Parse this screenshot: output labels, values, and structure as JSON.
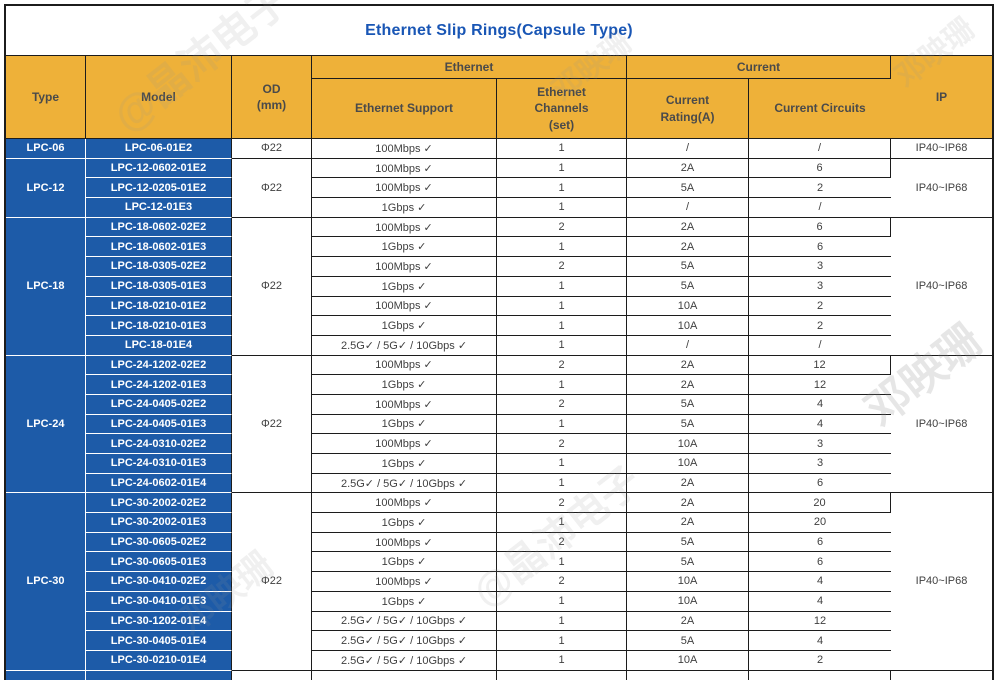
{
  "title": "Ethernet Slip Rings(Capsule Type)",
  "colors": {
    "header_bg": "#EEB139",
    "group_cell_bg": "#1D5BA8",
    "title_color": "#1956B5",
    "border_color": "#1C1C1C",
    "header_text": "#4A4A4A",
    "body_text": "#3F3F3F"
  },
  "header": {
    "type": "Type",
    "model": "Model",
    "od": "OD\n(mm)",
    "ethernet_group": "Ethernet",
    "current_group": "Current",
    "ethernet_support": "Ethernet Support",
    "ethernet_channels": "Ethernet\nChannels\n(set)",
    "current_rating": "Current\nRating(A)",
    "current_circuits": "Current Circuits",
    "ip": "IP"
  },
  "groups": [
    {
      "type": "LPC-06",
      "od": "Φ22",
      "ip": "IP40~IP68",
      "rows": [
        {
          "model": "LPC-06-01E2",
          "support": "100Mbps ✓",
          "channels": "1",
          "rating": "/",
          "circuits": "/"
        }
      ]
    },
    {
      "type": "LPC-12",
      "od": "Φ22",
      "ip": "IP40~IP68",
      "rows": [
        {
          "model": "LPC-12-0602-01E2",
          "support": "100Mbps ✓",
          "channels": "1",
          "rating": "2A",
          "circuits": "6"
        },
        {
          "model": "LPC-12-0205-01E2",
          "support": "100Mbps ✓",
          "channels": "1",
          "rating": "5A",
          "circuits": "2"
        },
        {
          "model": "LPC-12-01E3",
          "support": "1Gbps ✓",
          "channels": "1",
          "rating": "/",
          "circuits": "/"
        }
      ]
    },
    {
      "type": "LPC-18",
      "od": "Φ22",
      "ip": "IP40~IP68",
      "rows": [
        {
          "model": "LPC-18-0602-02E2",
          "support": "100Mbps ✓",
          "channels": "2",
          "rating": "2A",
          "circuits": "6"
        },
        {
          "model": "LPC-18-0602-01E3",
          "support": "1Gbps ✓",
          "channels": "1",
          "rating": "2A",
          "circuits": "6"
        },
        {
          "model": "LPC-18-0305-02E2",
          "support": "100Mbps ✓",
          "channels": "2",
          "rating": "5A",
          "circuits": "3"
        },
        {
          "model": "LPC-18-0305-01E3",
          "support": "1Gbps ✓",
          "channels": "1",
          "rating": "5A",
          "circuits": "3"
        },
        {
          "model": "LPC-18-0210-01E2",
          "support": "100Mbps ✓",
          "channels": "1",
          "rating": "10A",
          "circuits": "2"
        },
        {
          "model": "LPC-18-0210-01E3",
          "support": "1Gbps ✓",
          "channels": "1",
          "rating": "10A",
          "circuits": "2"
        },
        {
          "model": "LPC-18-01E4",
          "support": "2.5G✓ / 5G✓ / 10Gbps ✓",
          "channels": "1",
          "rating": "/",
          "circuits": "/"
        }
      ]
    },
    {
      "type": "LPC-24",
      "od": "Φ22",
      "ip": "IP40~IP68",
      "rows": [
        {
          "model": "LPC-24-1202-02E2",
          "support": "100Mbps ✓",
          "channels": "2",
          "rating": "2A",
          "circuits": "12"
        },
        {
          "model": "LPC-24-1202-01E3",
          "support": "1Gbps ✓",
          "channels": "1",
          "rating": "2A",
          "circuits": "12"
        },
        {
          "model": "LPC-24-0405-02E2",
          "support": "100Mbps ✓",
          "channels": "2",
          "rating": "5A",
          "circuits": "4"
        },
        {
          "model": "LPC-24-0405-01E3",
          "support": "1Gbps ✓",
          "channels": "1",
          "rating": "5A",
          "circuits": "4"
        },
        {
          "model": "LPC-24-0310-02E2",
          "support": "100Mbps ✓",
          "channels": "2",
          "rating": "10A",
          "circuits": "3"
        },
        {
          "model": "LPC-24-0310-01E3",
          "support": "1Gbps ✓",
          "channels": "1",
          "rating": "10A",
          "circuits": "3"
        },
        {
          "model": "LPC-24-0602-01E4",
          "support": "2.5G✓ / 5G✓ / 10Gbps ✓",
          "channels": "1",
          "rating": "2A",
          "circuits": "6"
        }
      ]
    },
    {
      "type": "LPC-30",
      "od": "Φ22",
      "ip": "IP40~IP68",
      "rows": [
        {
          "model": "LPC-30-2002-02E2",
          "support": "100Mbps ✓",
          "channels": "2",
          "rating": "2A",
          "circuits": "20"
        },
        {
          "model": "LPC-30-2002-01E3",
          "support": "1Gbps ✓",
          "channels": "1",
          "rating": "2A",
          "circuits": "20"
        },
        {
          "model": "LPC-30-0605-02E2",
          "support": "100Mbps ✓",
          "channels": "2",
          "rating": "5A",
          "circuits": "6"
        },
        {
          "model": "LPC-30-0605-01E3",
          "support": "1Gbps ✓",
          "channels": "1",
          "rating": "5A",
          "circuits": "6"
        },
        {
          "model": "LPC-30-0410-02E2",
          "support": "100Mbps ✓",
          "channels": "2",
          "rating": "10A",
          "circuits": "4"
        },
        {
          "model": "LPC-30-0410-01E3",
          "support": "1Gbps ✓",
          "channels": "1",
          "rating": "10A",
          "circuits": "4"
        },
        {
          "model": "LPC-30-1202-01E4",
          "support": "2.5G✓ / 5G✓ / 10Gbps ✓",
          "channels": "1",
          "rating": "2A",
          "circuits": "12"
        },
        {
          "model": "LPC-30-0405-01E4",
          "support": "2.5G✓ / 5G✓ / 10Gbps ✓",
          "channels": "1",
          "rating": "5A",
          "circuits": "4"
        },
        {
          "model": "LPC-30-0210-01E4",
          "support": "2.5G✓ / 5G✓ / 10Gbps ✓",
          "channels": "1",
          "rating": "10A",
          "circuits": "2"
        }
      ]
    }
  ],
  "truncated_next_group": true,
  "watermarks": {
    "name_text": "邓映珊",
    "brand_text": "@晶沛电子"
  }
}
